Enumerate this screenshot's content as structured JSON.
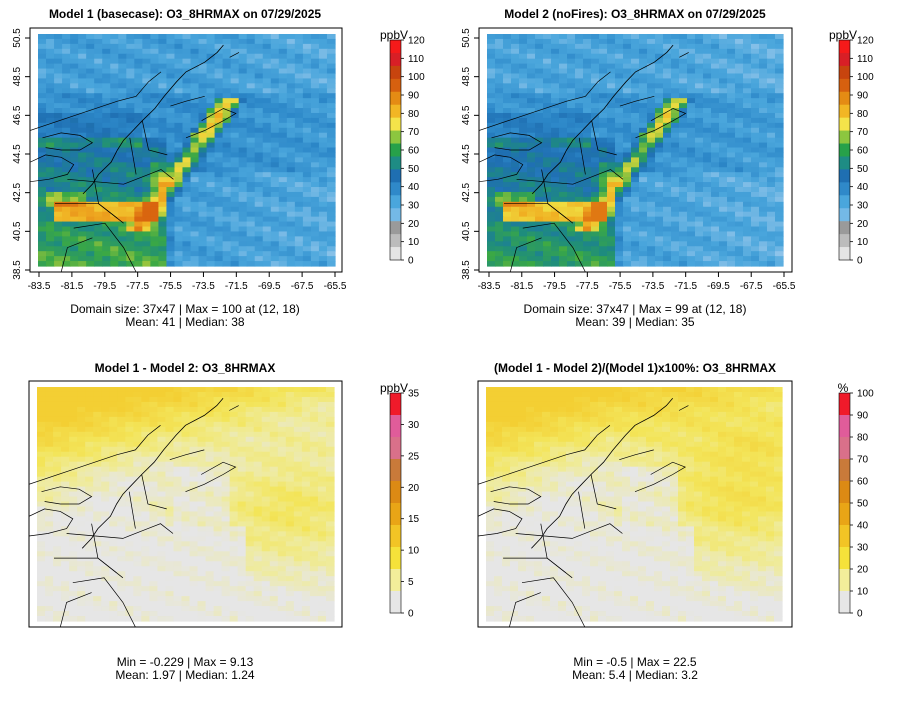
{
  "chart_data": [
    {
      "type": "heatmap",
      "title": "Model 1 (basecase): O3_8HRMAX on 07/29/2025",
      "variable": "O3_8HRMAX",
      "xticks": [
        "-83.5",
        "-81.5",
        "-79.5",
        "-77.5",
        "-75.5",
        "-73.5",
        "-71.5",
        "-69.5",
        "-67.5",
        "-65.5"
      ],
      "yticks": [
        "38.5",
        "40.5",
        "42.5",
        "44.5",
        "46.5",
        "48.5",
        "50.5"
      ],
      "colorbar": {
        "unit": "ppbV",
        "ticks": [
          "0",
          "10",
          "20",
          "30",
          "40",
          "50",
          "60",
          "70",
          "80",
          "90",
          "100",
          "110",
          "120"
        ],
        "colors": [
          "#e4e4e4",
          "#bcbcbc",
          "#9a9a9a",
          "#74b9e6",
          "#4aa6dc",
          "#2f89c9",
          "#1f6fb2",
          "#1e8c84",
          "#27a14a",
          "#8cc63f",
          "#f4e34a",
          "#f2b624",
          "#e58b14",
          "#d6600f",
          "#c8440e",
          "#d81f26",
          "#f51a1a"
        ]
      },
      "stats": {
        "line1": "Domain size: 37x47 | Max = 100 at (12, 18)",
        "line2": "Mean: 41 |  Median: 38",
        "domain": "37x47",
        "max": 100,
        "max_at": "(12, 18)",
        "mean": 41,
        "median": 38
      }
    },
    {
      "type": "heatmap",
      "title": "Model 2 (noFires): O3_8HRMAX on 07/29/2025",
      "variable": "O3_8HRMAX",
      "xticks": [
        "-83.5",
        "-81.5",
        "-79.5",
        "-77.5",
        "-75.5",
        "-73.5",
        "-71.5",
        "-69.5",
        "-67.5",
        "-65.5"
      ],
      "yticks": [
        "38.5",
        "40.5",
        "42.5",
        "44.5",
        "46.5",
        "48.5",
        "50.5"
      ],
      "colorbar": {
        "unit": "ppbV",
        "ticks": [
          "0",
          "10",
          "20",
          "30",
          "40",
          "50",
          "60",
          "70",
          "80",
          "90",
          "100",
          "110",
          "120"
        ],
        "colors": [
          "#e4e4e4",
          "#bcbcbc",
          "#9a9a9a",
          "#74b9e6",
          "#4aa6dc",
          "#2f89c9",
          "#1f6fb2",
          "#1e8c84",
          "#27a14a",
          "#8cc63f",
          "#f4e34a",
          "#f2b624",
          "#e58b14",
          "#d6600f",
          "#c8440e",
          "#d81f26",
          "#f51a1a"
        ]
      },
      "stats": {
        "line1": "Domain size: 37x47 | Max = 99 at (12, 18)",
        "line2": "Mean: 39 |  Median: 35",
        "domain": "37x47",
        "max": 99,
        "max_at": "(12, 18)",
        "mean": 39,
        "median": 35
      }
    },
    {
      "type": "heatmap",
      "title": "Model 1 - Model 2: O3_8HRMAX",
      "variable": "O3_8HRMAX difference",
      "colorbar": {
        "unit": "ppbV",
        "ticks": [
          "0",
          "5",
          "10",
          "15",
          "20",
          "25",
          "30",
          "35"
        ],
        "colors": [
          "#e6e6e6",
          "#f3ee9a",
          "#f5e23a",
          "#f2c425",
          "#e9a516",
          "#dc8a14",
          "#c97a3a",
          "#d9708a",
          "#e05c9a",
          "#f01a2a"
        ]
      },
      "stats": {
        "line1": "Min = -0.229 | Max = 9.13",
        "line2": "Mean: 1.97 |  Median: 1.24",
        "min": -0.229,
        "max": 9.13,
        "mean": 1.97,
        "median": 1.24
      }
    },
    {
      "type": "heatmap",
      "title": "(Model 1 - Model 2)/(Model 1)x100%: O3_8HRMAX",
      "variable": "O3_8HRMAX percent difference",
      "colorbar": {
        "unit": "%",
        "ticks": [
          "0",
          "10",
          "20",
          "30",
          "40",
          "50",
          "60",
          "70",
          "80",
          "90",
          "100"
        ],
        "colors": [
          "#e6e6e6",
          "#f3ee9a",
          "#f5e23a",
          "#f2c425",
          "#e9a516",
          "#dc8a14",
          "#c97a3a",
          "#d9708a",
          "#e05c9a",
          "#f01a2a"
        ]
      },
      "stats": {
        "line1": "Min = -0.5 | Max = 22.5",
        "line2": "Mean: 5.4 |  Median: 3.2",
        "min": -0.5,
        "max": 22.5,
        "mean": 5.4,
        "median": 3.2
      }
    }
  ]
}
